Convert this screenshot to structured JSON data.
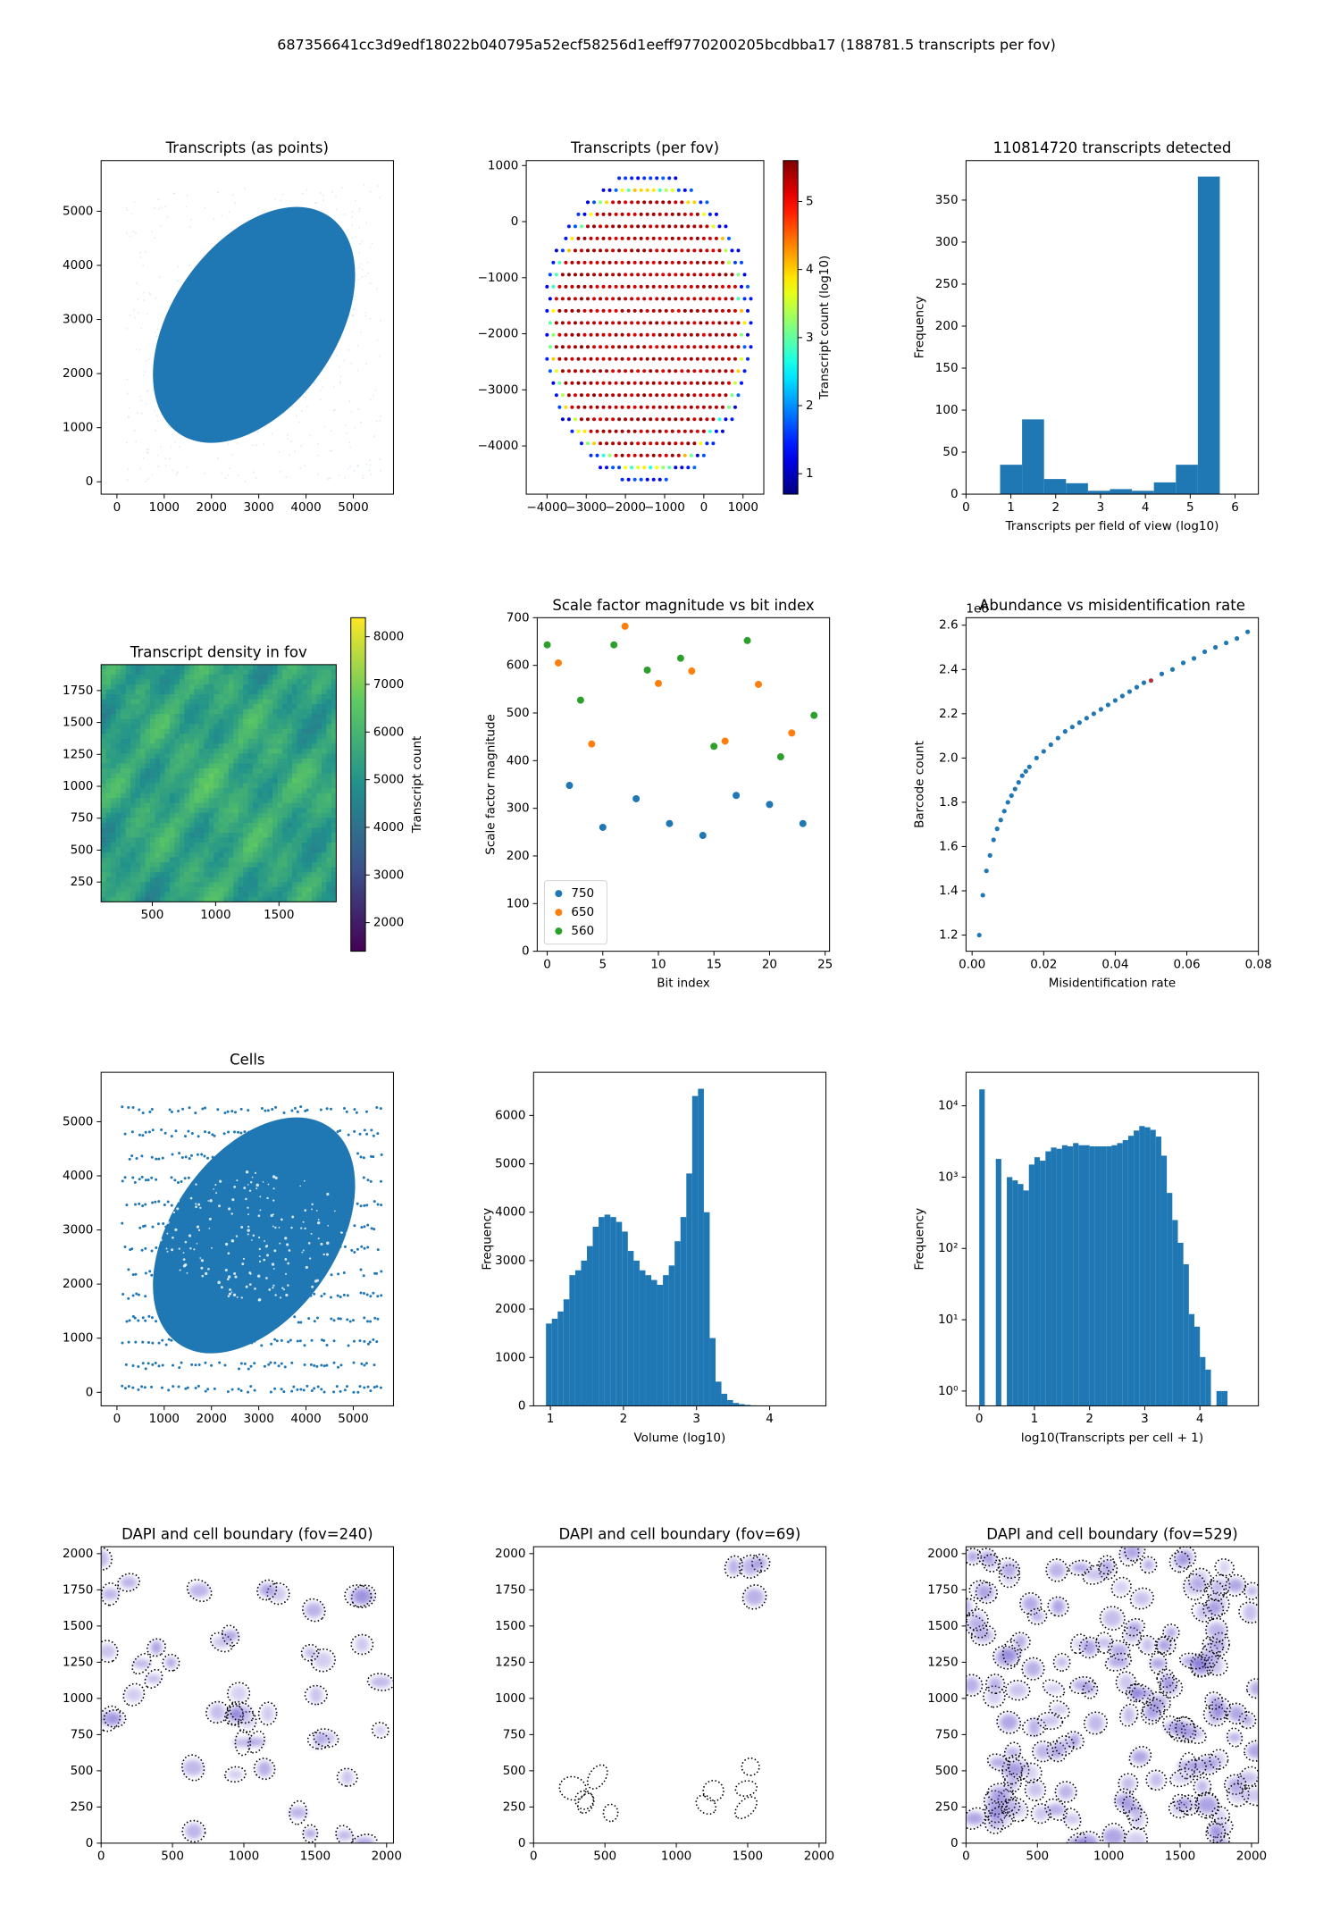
{
  "title": "687356641cc3d9edf18022b040795a52ecf58256d1eeff9770200205bcdbba17 (188781.5 transcripts per fov)",
  "chart_data": [
    {
      "type": "image",
      "title": "Transcripts (as points)",
      "color": "#1f77b4",
      "xlim": [
        -335,
        5850
      ],
      "ylim": [
        -228,
        5936
      ],
      "xticks": [
        0,
        1000,
        2000,
        3000,
        4000,
        5000
      ],
      "yticks": [
        0,
        1000,
        2000,
        3000,
        4000,
        5000
      ]
    },
    {
      "type": "image",
      "title": "Transcripts (per fov)",
      "xlim": [
        -4530,
        1530
      ],
      "ylim": [
        -4860,
        1088
      ],
      "xticks": [
        {
          "value": -4000,
          "label": "−4000"
        },
        {
          "value": -3000,
          "label": "−3000"
        },
        {
          "value": -2000,
          "label": "−2000"
        },
        {
          "value": -1000,
          "label": "−1000"
        },
        0,
        1000
      ],
      "yticks": [
        {
          "value": -4000,
          "label": "−4000"
        },
        {
          "value": -3000,
          "label": "−3000"
        },
        {
          "value": -2000,
          "label": "−2000"
        },
        {
          "value": -1000,
          "label": "−1000"
        },
        0,
        1000
      ],
      "colorbar": {
        "label": "Transcript count (log10)",
        "lim": [
          0.7,
          5.6
        ],
        "ticks": [
          1,
          2,
          3,
          4,
          5
        ],
        "colormap": "jet"
      }
    },
    {
      "type": "histogram",
      "title": "110814720 transcripts detected",
      "color": "#1f77b4",
      "xlabel": "Transcripts per field of view (log10)",
      "ylabel": "Frequency",
      "bins": [
        0.76,
        1.25,
        1.74,
        2.23,
        2.72,
        3.21,
        3.7,
        4.19,
        4.68,
        5.17,
        5.66
      ],
      "values": [
        35,
        89,
        18,
        13,
        4,
        6,
        4,
        14,
        35,
        378
      ],
      "xlim": [
        0,
        6.52
      ],
      "ylim": [
        0,
        397
      ],
      "xticks": [
        0,
        1,
        2,
        3,
        4,
        5,
        6
      ],
      "yticks": [
        0,
        50,
        100,
        150,
        200,
        250,
        300,
        350
      ]
    },
    {
      "type": "image",
      "title": "Transcript density in fov",
      "xlim": [
        96,
        1952
      ],
      "ylim": [
        95,
        1953
      ],
      "xticks": [
        500,
        1000,
        1500
      ],
      "yticks": [
        250,
        500,
        750,
        1000,
        1250,
        1500,
        1750
      ],
      "colorbar": {
        "label": "Transcript count",
        "lim": [
          1400,
          8400
        ],
        "ticks": [
          2000,
          3000,
          4000,
          5000,
          6000,
          7000,
          8000
        ],
        "colormap": "viridis"
      }
    },
    {
      "type": "scatter",
      "title": "Scale factor magnitude vs bit index",
      "xlabel": "Bit index",
      "ylabel": "Scale factor magnitude",
      "legend": "lower left",
      "xlim": [
        -0.9,
        25.4
      ],
      "ylim": [
        0,
        700
      ],
      "xticks": [
        0,
        5,
        10,
        15,
        20,
        25
      ],
      "yticks": [
        0,
        100,
        200,
        300,
        400,
        500,
        600,
        700
      ],
      "series": [
        {
          "name": "750",
          "color": "#1f77b4",
          "x": [
            2,
            5,
            8,
            11,
            14,
            17,
            20,
            23
          ],
          "values": [
            348,
            260,
            320,
            268,
            243,
            327,
            308,
            268
          ]
        },
        {
          "name": "650",
          "color": "#ff7f0e",
          "x": [
            1,
            4,
            7,
            10,
            13,
            16,
            19,
            22
          ],
          "values": [
            605,
            435,
            682,
            562,
            588,
            441,
            560,
            458
          ]
        },
        {
          "name": "560",
          "color": "#2ca02c",
          "x": [
            0,
            3,
            6,
            9,
            12,
            15,
            18,
            21,
            24
          ],
          "values": [
            643,
            527,
            643,
            590,
            615,
            430,
            652,
            408,
            495
          ]
        }
      ]
    },
    {
      "type": "scatter",
      "title": "Abundance vs misidentification rate",
      "xlabel": "Misidentification rate",
      "ylabel": "Barcode count",
      "y_offset_label": "1e6",
      "color": "#1f77b4",
      "xlim": [
        -0.0017,
        0.08
      ],
      "ylim": [
        1.127,
        2.634
      ],
      "xticks": [
        {
          "value": 0,
          "label": "0.00"
        },
        0.02,
        0.04,
        0.06,
        0.08
      ],
      "yticks": [
        1.2,
        1.4,
        1.6,
        1.8,
        {
          "value": 2,
          "label": "2.0"
        },
        2.2,
        2.4,
        2.6
      ],
      "x": [
        0.002,
        0.003,
        0.004,
        0.005,
        0.006,
        0.007,
        0.008,
        0.009,
        0.01,
        0.011,
        0.012,
        0.013,
        0.014,
        0.015,
        0.016,
        0.018,
        0.02,
        0.022,
        0.024,
        0.026,
        0.028,
        0.03,
        0.032,
        0.034,
        0.036,
        0.038,
        0.04,
        0.042,
        0.044,
        0.046,
        0.048,
        0.05,
        0.053,
        0.056,
        0.059,
        0.062,
        0.065,
        0.068,
        0.071,
        0.074,
        0.077
      ],
      "values": [
        1.2,
        1.38,
        1.49,
        1.56,
        1.63,
        1.68,
        1.72,
        1.76,
        1.8,
        1.83,
        1.86,
        1.89,
        1.92,
        1.94,
        1.96,
        2.0,
        2.03,
        2.06,
        2.09,
        2.12,
        2.14,
        2.16,
        2.18,
        2.2,
        2.22,
        2.24,
        2.26,
        2.28,
        2.3,
        2.32,
        2.34,
        2.35,
        2.38,
        2.4,
        2.43,
        2.45,
        2.48,
        2.5,
        2.52,
        2.54,
        2.57
      ],
      "highlight": {
        "x": 0.05,
        "value": 2.35,
        "color": "#d62728"
      }
    },
    {
      "type": "image",
      "title": "Cells",
      "color": "#1f77b4",
      "xlim": [
        -335,
        5850
      ],
      "ylim": [
        -250,
        5913
      ],
      "xticks": [
        0,
        1000,
        2000,
        3000,
        4000,
        5000
      ],
      "yticks": [
        0,
        1000,
        2000,
        3000,
        4000,
        5000
      ]
    },
    {
      "type": "histogram",
      "color": "#1f77b4",
      "xlabel": "Volume (log10)",
      "ylabel": "Frequency",
      "bins": [
        0.94,
        1.02,
        1.1,
        1.18,
        1.26,
        1.34,
        1.42,
        1.5,
        1.58,
        1.66,
        1.74,
        1.82,
        1.9,
        1.98,
        2.06,
        2.14,
        2.22,
        2.3,
        2.38,
        2.46,
        2.54,
        2.62,
        2.7,
        2.78,
        2.86,
        2.94,
        3.02,
        3.1,
        3.18,
        3.26,
        3.34,
        3.42,
        3.5,
        3.58,
        3.66,
        3.74,
        3.82,
        3.9,
        3.98,
        4.06,
        4.14,
        4.22,
        4.3,
        4.38,
        4.46
      ],
      "values": [
        1700,
        1800,
        1950,
        2200,
        2700,
        2800,
        3000,
        3300,
        3700,
        3900,
        3950,
        3900,
        3800,
        3600,
        3200,
        3000,
        2800,
        2700,
        2600,
        2500,
        2700,
        2900,
        3400,
        3900,
        4800,
        6400,
        6550,
        4000,
        1400,
        500,
        250,
        120,
        60,
        35,
        20,
        10,
        6,
        4,
        2,
        1,
        1,
        1,
        0,
        1
      ],
      "xlim": [
        0.77,
        4.77
      ],
      "ylim": [
        0,
        6890
      ],
      "xticks": [
        1,
        2,
        3,
        4
      ],
      "yticks": [
        0,
        1000,
        2000,
        3000,
        4000,
        5000,
        6000
      ]
    },
    {
      "type": "histogram",
      "color": "#1f77b4",
      "xlabel": "log10(Transcripts per cell + 1)",
      "ylabel": "Frequency",
      "log_y": true,
      "bins": [
        0,
        0.1,
        0.2,
        0.3,
        0.4,
        0.5,
        0.6,
        0.7,
        0.8,
        0.9,
        1,
        1.1,
        1.2,
        1.3,
        1.4,
        1.5,
        1.6,
        1.7,
        1.8,
        1.9,
        2,
        2.1,
        2.2,
        2.3,
        2.4,
        2.5,
        2.6,
        2.7,
        2.8,
        2.9,
        3,
        3.1,
        3.2,
        3.3,
        3.4,
        3.5,
        3.6,
        3.7,
        3.8,
        3.9,
        4,
        4.1,
        4.2,
        4.3,
        4.4,
        4.5
      ],
      "values": [
        17000,
        0,
        0,
        1800,
        0,
        1000,
        900,
        800,
        650,
        1500,
        1900,
        1700,
        2300,
        2600,
        2500,
        2800,
        2700,
        3000,
        2800,
        2800,
        2700,
        2700,
        2700,
        2700,
        2800,
        3000,
        3300,
        3800,
        4500,
        5200,
        5000,
        4600,
        3700,
        2000,
        600,
        250,
        120,
        60,
        12,
        8,
        3,
        2,
        0,
        1,
        1
      ],
      "xlim": [
        -0.24,
        5.06
      ],
      "ylim": [
        0.62,
        29500
      ],
      "xticks": [
        0,
        1,
        2,
        3,
        4
      ],
      "yticks": [
        {
          "value": 1,
          "label": "10⁰"
        },
        {
          "value": 10,
          "label": "10¹"
        },
        {
          "value": 100,
          "label": "10²"
        },
        {
          "value": 1000,
          "label": "10³"
        },
        {
          "value": 10000,
          "label": "10⁴"
        }
      ]
    },
    {
      "type": "image",
      "title": "DAPI and cell boundary (fov=240)",
      "xlim": [
        0,
        2048
      ],
      "ylim": [
        0,
        2048
      ],
      "xticks": [
        0,
        500,
        1000,
        1500,
        2000
      ],
      "yticks": [
        0,
        250,
        500,
        750,
        1000,
        1250,
        1500,
        1750,
        2000
      ]
    },
    {
      "type": "image",
      "title": "DAPI and cell boundary (fov=69)",
      "xlim": [
        0,
        2048
      ],
      "ylim": [
        0,
        2048
      ],
      "xticks": [
        0,
        500,
        1000,
        1500,
        2000
      ],
      "yticks": [
        0,
        250,
        500,
        750,
        1000,
        1250,
        1500,
        1750,
        2000
      ]
    },
    {
      "type": "image",
      "title": "DAPI and cell boundary (fov=529)",
      "xlim": [
        0,
        2048
      ],
      "ylim": [
        0,
        2048
      ],
      "xticks": [
        0,
        500,
        1000,
        1500,
        2000
      ],
      "yticks": [
        0,
        250,
        500,
        750,
        1000,
        1250,
        1500,
        1750,
        2000
      ]
    }
  ]
}
